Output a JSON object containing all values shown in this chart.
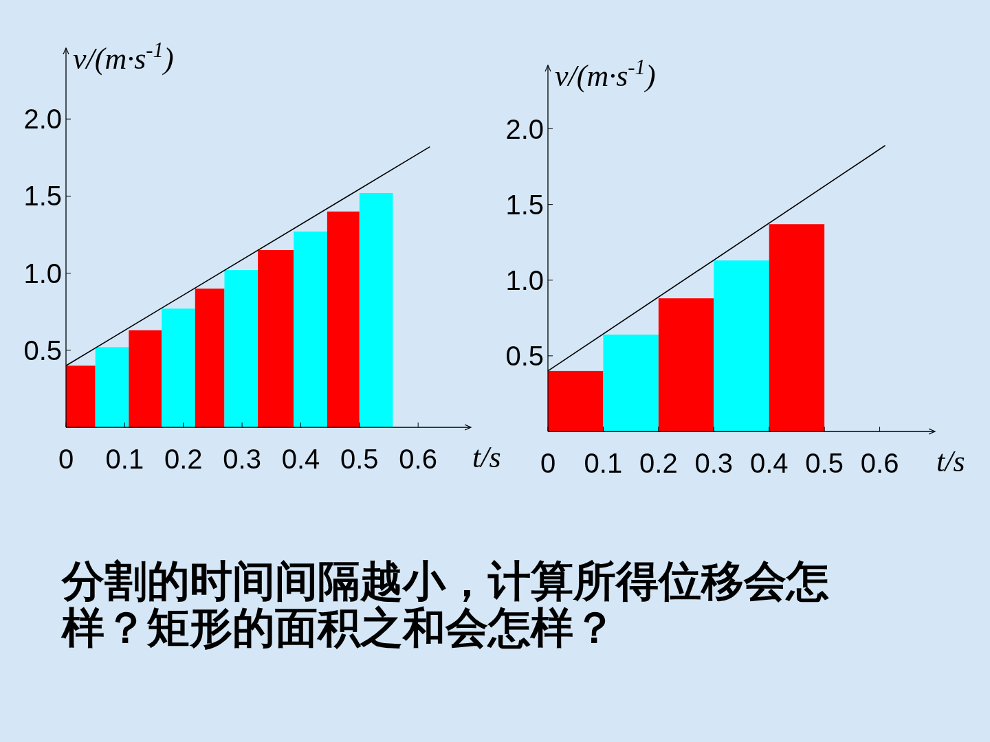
{
  "chart_data": [
    {
      "type": "histogram",
      "ylabel": "v/(m·s$^{-1}$)",
      "xlabel": "t/s",
      "xlim": [
        0,
        0.69
      ],
      "ylim": [
        0,
        2.46
      ],
      "xticks": [
        {
          "value": 0,
          "label": "0"
        },
        {
          "value": 0.1,
          "label": "0.1"
        },
        {
          "value": 0.2,
          "label": "0.2"
        },
        {
          "value": 0.3,
          "label": "0.3"
        },
        {
          "value": 0.4,
          "label": "0.4"
        },
        {
          "value": 0.5,
          "label": "0.5"
        },
        {
          "value": 0.6,
          "label": "0.6"
        }
      ],
      "yticks": [
        {
          "value": 0.5,
          "label": "0.5"
        },
        {
          "value": 1,
          "label": "1.0"
        },
        {
          "value": 1.5,
          "label": "1.5"
        },
        {
          "value": 2,
          "label": "2.0"
        }
      ],
      "series": [
        {
          "bins": [
            0,
            0.05,
            0.107,
            0.163,
            0.22,
            0.27,
            0.327,
            0.388,
            0.445,
            0.5,
            0.557
          ],
          "values": [
            0.4,
            0.52,
            0.63,
            0.77,
            0.9,
            1.02,
            1.15,
            1.27,
            1.4,
            1.52
          ],
          "colors": [
            "#ff0000",
            "#00ffff",
            "#ff0000",
            "#00ffff",
            "#ff0000",
            "#00ffff",
            "#ff0000",
            "#00ffff",
            "#ff0000",
            "#00ffff"
          ]
        },
        {
          "type": "line",
          "x": [
            0,
            0.62
          ],
          "values": [
            0.4,
            1.82
          ],
          "color": "#000000"
        }
      ],
      "annotations": [
        "分割的时间间隔越小，计算所得位移会怎样？矩形的面积之和会怎样？"
      ]
    },
    {
      "type": "histogram",
      "ylabel": "v/(m·s$^{-1}$)",
      "xlabel": "t/s",
      "xlim": [
        0,
        0.7
      ],
      "ylim": [
        0,
        2.42
      ],
      "xticks": [
        {
          "value": 0,
          "label": "0"
        },
        {
          "value": 0.1,
          "label": "0.1"
        },
        {
          "value": 0.2,
          "label": "0.2"
        },
        {
          "value": 0.3,
          "label": "0.3"
        },
        {
          "value": 0.4,
          "label": "0.4"
        },
        {
          "value": 0.5,
          "label": "0.5"
        },
        {
          "value": 0.6,
          "label": "0.6"
        }
      ],
      "yticks": [
        {
          "value": 0.5,
          "label": "0.5"
        },
        {
          "value": 1,
          "label": "1.0"
        },
        {
          "value": 1.5,
          "label": "1.5"
        },
        {
          "value": 2,
          "label": "2.0"
        }
      ],
      "series": [
        {
          "bins": [
            0,
            0.1,
            0.2,
            0.3,
            0.4,
            0.5
          ],
          "values": [
            0.4,
            0.64,
            0.88,
            1.13,
            1.37
          ],
          "colors": [
            "#ff0000",
            "#00ffff",
            "#ff0000",
            "#00ffff",
            "#ff0000"
          ]
        },
        {
          "type": "line",
          "x": [
            0,
            0.61
          ],
          "values": [
            0.4,
            1.89
          ],
          "color": "#000000"
        }
      ]
    }
  ]
}
